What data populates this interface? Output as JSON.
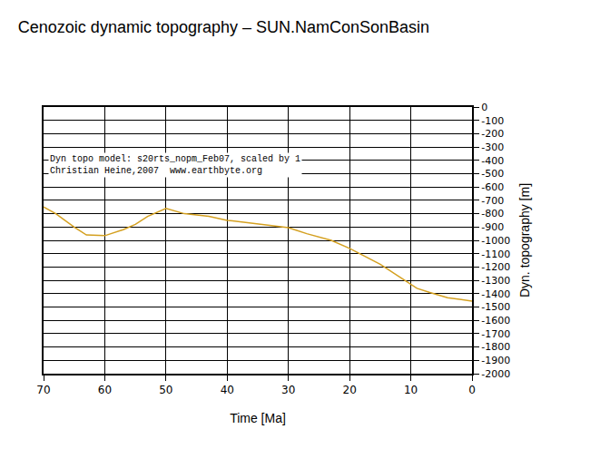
{
  "chart_data": {
    "type": "line",
    "title": "Cenozoic dynamic topography – SUN.NamConSonBasin",
    "x_label": "Time [Ma]",
    "y_label": "Dyn. topography [m]",
    "annotations": [
      "Dyn topo model: s20rts_nopm_Feb07, scaled by 1",
      "Christian Heine,2007  www.earthbyte.org"
    ],
    "x": [
      70,
      68,
      65,
      63,
      60,
      57,
      55,
      53,
      50,
      47,
      43,
      40,
      37,
      33,
      30,
      27,
      23,
      20,
      17,
      15,
      12,
      9,
      7,
      4,
      0
    ],
    "values": [
      -750,
      -800,
      -900,
      -960,
      -965,
      -920,
      -880,
      -820,
      -760,
      -800,
      -820,
      -850,
      -865,
      -890,
      -905,
      -950,
      -1000,
      -1060,
      -1130,
      -1180,
      -1270,
      -1360,
      -1390,
      -1430,
      -1455
    ],
    "color": "#d4a020",
    "xlim": [
      70,
      0
    ],
    "xticks": [
      70,
      60,
      50,
      40,
      30,
      20,
      10,
      0
    ],
    "ylim": [
      -2000,
      0
    ],
    "yticks": [
      0,
      -100,
      -200,
      -300,
      -400,
      -500,
      -600,
      -700,
      -800,
      -900,
      -1000,
      -1100,
      -1200,
      -1300,
      -1400,
      -1500,
      -1600,
      -1700,
      -1800,
      -1900,
      -2000
    ],
    "grid": true
  }
}
